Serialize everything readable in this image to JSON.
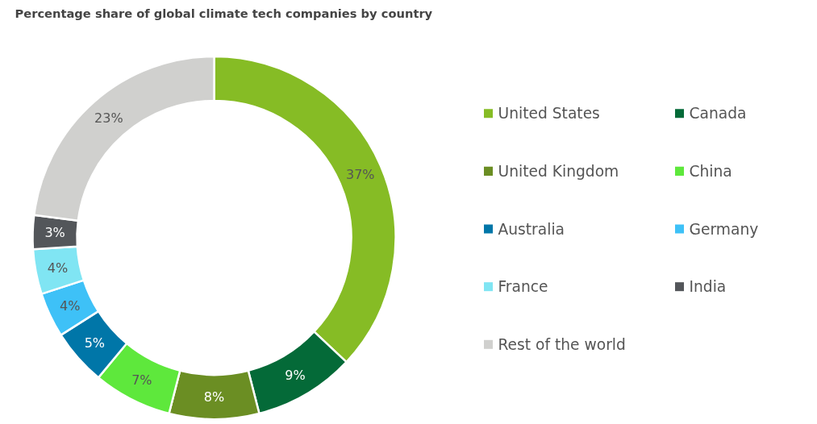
{
  "chart_data": {
    "type": "donut",
    "title": "Percentage share of global climate tech companies by country",
    "categories": [
      "United States",
      "Canada",
      "United Kingdom",
      "China",
      "Australia",
      "Germany",
      "France",
      "India",
      "Rest of the world"
    ],
    "values": [
      37,
      9,
      8,
      7,
      5,
      4,
      4,
      3,
      23
    ],
    "value_labels": [
      "37%",
      "9%",
      "8%",
      "7%",
      "5%",
      "4%",
      "4%",
      "3%",
      "23%"
    ],
    "colors": [
      "#86bc25",
      "#046a38",
      "#6b8e23",
      "#5ee83c",
      "#0076a8",
      "#3ec1f7",
      "#80e5f3",
      "#53565a",
      "#d0d0ce"
    ],
    "legend": "right"
  }
}
